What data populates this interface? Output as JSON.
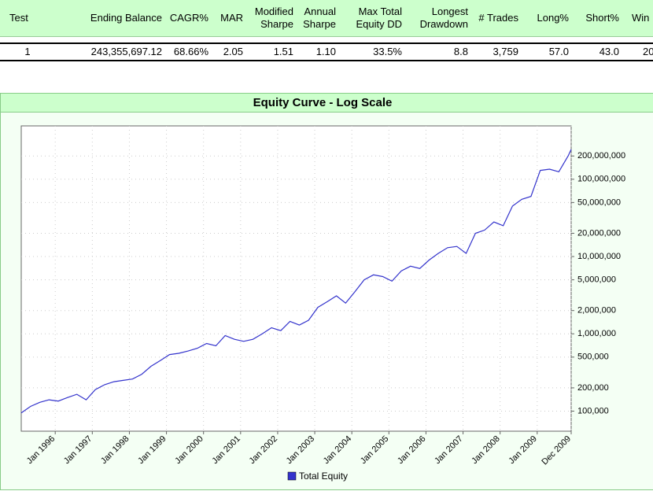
{
  "table": {
    "header": [
      "Test",
      "Ending Balance",
      "CAGR%",
      "MAR",
      "Modified Sharpe",
      "Annual Sharpe",
      "Max Total Equity DD",
      "Longest Drawdown",
      "# Trades",
      "Long%",
      "Short%",
      "Win"
    ],
    "rows": [
      [
        "1",
        "243,355,697.12",
        "68.66%",
        "2.05",
        "1.51",
        "1.10",
        "33.5%",
        "8.8",
        "3,759",
        "57.0",
        "43.0",
        "20"
      ]
    ]
  },
  "chart_data": {
    "type": "line",
    "title": "Equity Curve - Log Scale",
    "log_y": true,
    "grid": true,
    "legend": "bottom",
    "x": [
      "1995-02",
      "1995-05",
      "1995-08",
      "1995-11",
      "1996-02",
      "1996-05",
      "1996-08",
      "1996-11",
      "1997-02",
      "1997-05",
      "1997-08",
      "1997-11",
      "1998-02",
      "1998-05",
      "1998-08",
      "1998-11",
      "1999-02",
      "1999-05",
      "1999-08",
      "1999-11",
      "2000-02",
      "2000-05",
      "2000-08",
      "2000-11",
      "2001-02",
      "2001-05",
      "2001-08",
      "2001-11",
      "2002-02",
      "2002-05",
      "2002-08",
      "2002-11",
      "2003-02",
      "2003-05",
      "2003-08",
      "2003-11",
      "2004-02",
      "2004-05",
      "2004-08",
      "2004-11",
      "2005-02",
      "2005-05",
      "2005-08",
      "2005-11",
      "2006-02",
      "2006-05",
      "2006-08",
      "2006-11",
      "2007-02",
      "2007-05",
      "2007-08",
      "2007-11",
      "2008-02",
      "2008-05",
      "2008-08",
      "2008-11",
      "2009-02",
      "2009-05",
      "2009-08",
      "2009-11",
      "2009-12"
    ],
    "series": [
      {
        "name": "Total Equity",
        "color": "#3333cc",
        "values": [
          95000,
          115000,
          130000,
          140000,
          135000,
          150000,
          165000,
          140000,
          190000,
          220000,
          240000,
          250000,
          260000,
          300000,
          380000,
          450000,
          540000,
          560000,
          600000,
          650000,
          750000,
          700000,
          950000,
          850000,
          800000,
          850000,
          1000000,
          1200000,
          1100000,
          1450000,
          1300000,
          1500000,
          2200000,
          2600000,
          3100000,
          2500000,
          3500000,
          5000000,
          5800000,
          5500000,
          4800000,
          6500000,
          7500000,
          7000000,
          9000000,
          11000000,
          13000000,
          13500000,
          11000000,
          20000000,
          22000000,
          28000000,
          25000000,
          45000000,
          55000000,
          60000000,
          130000000,
          135000000,
          125000000,
          200000000,
          243355697
        ]
      }
    ],
    "xlim": [
      "1995-02",
      "2009-12"
    ],
    "xticks": [
      {
        "value": "1996-01",
        "label": "Jan 1996"
      },
      {
        "value": "1997-01",
        "label": "Jan 1997"
      },
      {
        "value": "1998-01",
        "label": "Jan 1998"
      },
      {
        "value": "1999-01",
        "label": "Jan 1999"
      },
      {
        "value": "2000-01",
        "label": "Jan 2000"
      },
      {
        "value": "2001-01",
        "label": "Jan 2001"
      },
      {
        "value": "2002-01",
        "label": "Jan 2002"
      },
      {
        "value": "2003-01",
        "label": "Jan 2003"
      },
      {
        "value": "2004-01",
        "label": "Jan 2004"
      },
      {
        "value": "2005-01",
        "label": "Jan 2005"
      },
      {
        "value": "2006-01",
        "label": "Jan 2006"
      },
      {
        "value": "2007-01",
        "label": "Jan 2007"
      },
      {
        "value": "2008-01",
        "label": "Jan 2008"
      },
      {
        "value": "2009-01",
        "label": "Jan 2009"
      },
      {
        "value": "2009-12",
        "label": "Dec 2009"
      }
    ],
    "ylim": [
      55000,
      490000000
    ],
    "yticks": [
      {
        "value": 100000,
        "label": "100,000"
      },
      {
        "value": 200000,
        "label": "200,000"
      },
      {
        "value": 500000,
        "label": "500,000"
      },
      {
        "value": 1000000,
        "label": "1,000,000"
      },
      {
        "value": 2000000,
        "label": "2,000,000"
      },
      {
        "value": 5000000,
        "label": "5,000,000"
      },
      {
        "value": 10000000,
        "label": "10,000,000"
      },
      {
        "value": 20000000,
        "label": "20,000,000"
      },
      {
        "value": 50000000,
        "label": "50,000,000"
      },
      {
        "value": 100000000,
        "label": "100,000,000"
      },
      {
        "value": 200000000,
        "label": "200,000,000"
      }
    ]
  }
}
